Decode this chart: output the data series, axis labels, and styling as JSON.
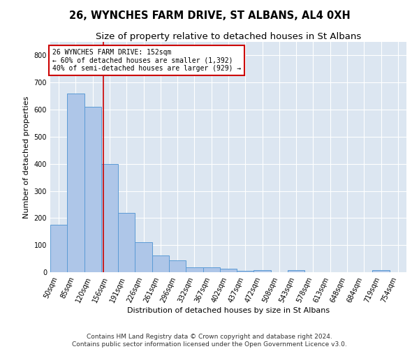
{
  "title": "26, WYNCHES FARM DRIVE, ST ALBANS, AL4 0XH",
  "subtitle": "Size of property relative to detached houses in St Albans",
  "xlabel": "Distribution of detached houses by size in St Albans",
  "ylabel": "Number of detached properties",
  "bar_labels": [
    "50sqm",
    "85sqm",
    "120sqm",
    "156sqm",
    "191sqm",
    "226sqm",
    "261sqm",
    "296sqm",
    "332sqm",
    "367sqm",
    "402sqm",
    "437sqm",
    "472sqm",
    "508sqm",
    "543sqm",
    "578sqm",
    "613sqm",
    "648sqm",
    "684sqm",
    "719sqm",
    "754sqm"
  ],
  "bar_values": [
    175,
    660,
    610,
    400,
    218,
    110,
    63,
    43,
    17,
    17,
    14,
    5,
    8,
    0,
    8,
    0,
    0,
    0,
    0,
    8,
    0
  ],
  "bar_color": "#aec6e8",
  "bar_edge_color": "#5b9bd5",
  "annotation_text": "26 WYNCHES FARM DRIVE: 152sqm\n← 60% of detached houses are smaller (1,392)\n40% of semi-detached houses are larger (929) →",
  "annotation_box_color": "#ffffff",
  "annotation_box_edge": "#cc0000",
  "vline_color": "#cc0000",
  "vline_x_index": 2.62,
  "ylim": [
    0,
    850
  ],
  "yticks": [
    0,
    100,
    200,
    300,
    400,
    500,
    600,
    700,
    800
  ],
  "footer_line1": "Contains HM Land Registry data © Crown copyright and database right 2024.",
  "footer_line2": "Contains public sector information licensed under the Open Government Licence v3.0.",
  "plot_bg_color": "#dce6f1",
  "title_fontsize": 10.5,
  "subtitle_fontsize": 9.5,
  "ylabel_fontsize": 8,
  "xlabel_fontsize": 8,
  "tick_fontsize": 7,
  "annotation_fontsize": 7,
  "footer_fontsize": 6.5
}
